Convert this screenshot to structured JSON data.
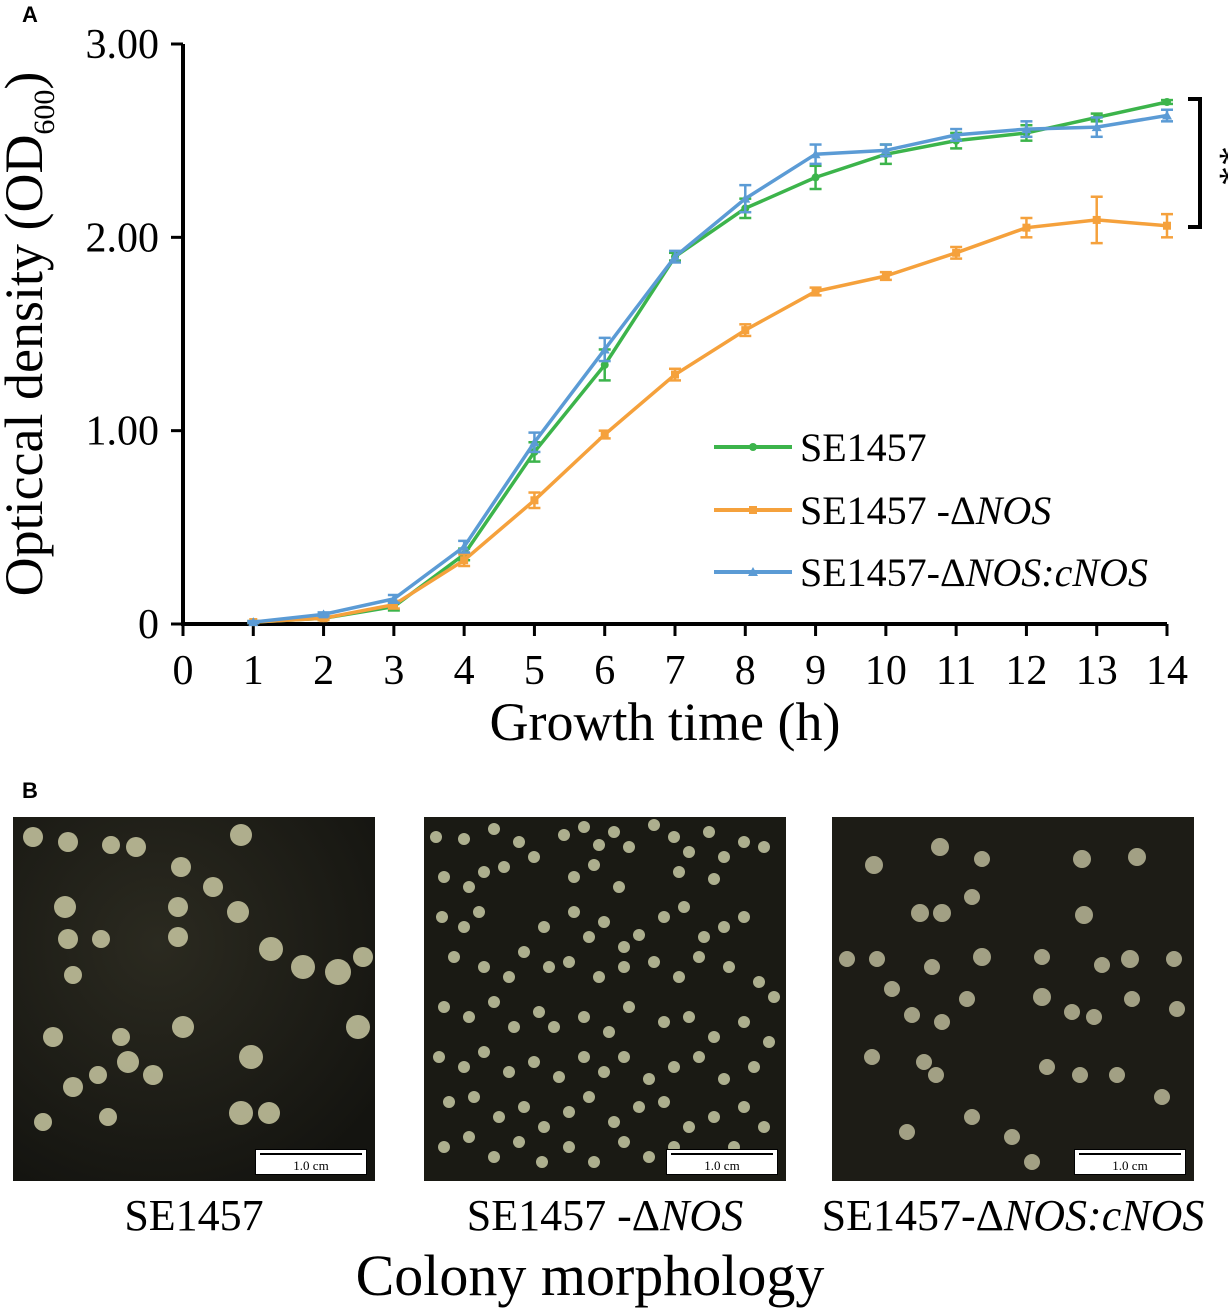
{
  "panel_a_label": "A",
  "panel_b_label": "B",
  "chart_data": {
    "type": "line",
    "xlabel": "Growth time (h)",
    "ylabel_main": "Opticcal density (OD",
    "ylabel_sub": "600",
    "ylabel_close": ")",
    "x_ticks": [
      "0",
      "1",
      "2",
      "3",
      "4",
      "5",
      "6",
      "7",
      "8",
      "9",
      "10",
      "11",
      "12",
      "13",
      "14"
    ],
    "y_ticks": [
      "0",
      "1.00",
      "2.00",
      "3.00"
    ],
    "xlim": [
      0,
      14
    ],
    "ylim": [
      0,
      3.0
    ],
    "x": [
      1,
      2,
      3,
      4,
      5,
      6,
      7,
      8,
      9,
      10,
      11,
      12,
      13,
      14
    ],
    "series": [
      {
        "name": "SE1457",
        "name_plain": "SE1457",
        "name_italic": "",
        "color": "#3cb44b",
        "marker": "circle",
        "values": [
          0.01,
          0.03,
          0.09,
          0.36,
          0.89,
          1.34,
          1.9,
          2.15,
          2.31,
          2.43,
          2.5,
          2.54,
          2.62,
          2.7
        ],
        "errors": [
          0.005,
          0.01,
          0.02,
          0.03,
          0.05,
          0.08,
          0.02,
          0.05,
          0.06,
          0.05,
          0.04,
          0.04,
          0.02,
          0.01
        ]
      },
      {
        "name": "SE1457 -ΔNOS",
        "name_plain": "SE1457 -Δ",
        "name_italic": "NOS",
        "color": "#f5a13c",
        "marker": "square",
        "values": [
          0.01,
          0.03,
          0.1,
          0.33,
          0.64,
          0.98,
          1.29,
          1.52,
          1.72,
          1.8,
          1.92,
          2.05,
          2.09,
          2.06
        ],
        "errors": [
          0.005,
          0.01,
          0.02,
          0.03,
          0.04,
          0.02,
          0.03,
          0.03,
          0.02,
          0.02,
          0.03,
          0.05,
          0.12,
          0.06
        ]
      },
      {
        "name": "SE1457-ΔNOS:cNOS",
        "name_plain": "SE1457-Δ",
        "name_italic": "NOS:cNOS",
        "color": "#5b9bd5",
        "marker": "triangle",
        "values": [
          0.01,
          0.05,
          0.13,
          0.4,
          0.94,
          1.42,
          1.9,
          2.2,
          2.43,
          2.45,
          2.53,
          2.56,
          2.57,
          2.63
        ],
        "errors": [
          0.005,
          0.01,
          0.02,
          0.03,
          0.05,
          0.06,
          0.03,
          0.07,
          0.05,
          0.03,
          0.03,
          0.04,
          0.05,
          0.03
        ]
      }
    ],
    "significance": "**",
    "legend_position": "center-right"
  },
  "panel_b": {
    "scalebar_label": "1.0 cm",
    "captions": [
      {
        "plain": "SE1457",
        "italic": ""
      },
      {
        "plain": "SE1457 -Δ",
        "italic": "NOS"
      },
      {
        "plain": "SE1457-Δ",
        "italic": "NOS:cNOS"
      }
    ],
    "title": "Colony morphology"
  }
}
